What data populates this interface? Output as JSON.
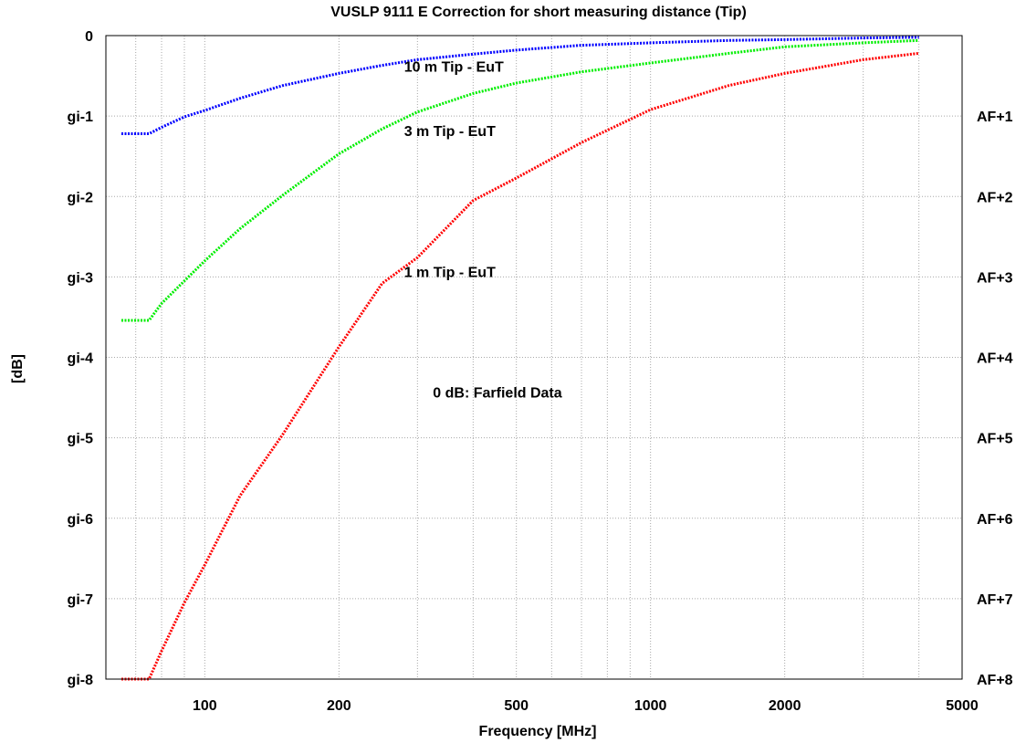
{
  "chart_data": {
    "type": "line",
    "title": "VUSLP 9111 E Correction for short measuring distance (Tip)",
    "xlabel": "Frequency [MHz]",
    "ylabel": "[dB]",
    "x_scale": "log",
    "xlim": [
      60,
      5000
    ],
    "ylim": [
      -8,
      0
    ],
    "grid": true,
    "x_ticks": [
      {
        "value": 100,
        "label": "100"
      },
      {
        "value": 200,
        "label": "200"
      },
      {
        "value": 500,
        "label": "500"
      },
      {
        "value": 1000,
        "label": "1000"
      },
      {
        "value": 2000,
        "label": "2000"
      },
      {
        "value": 5000,
        "label": "5000"
      }
    ],
    "y_ticks_left": [
      {
        "value": 0,
        "label": "0"
      },
      {
        "value": -1,
        "label": "gi-1"
      },
      {
        "value": -2,
        "label": "gi-2"
      },
      {
        "value": -3,
        "label": "gi-3"
      },
      {
        "value": -4,
        "label": "gi-4"
      },
      {
        "value": -5,
        "label": "gi-5"
      },
      {
        "value": -6,
        "label": "gi-6"
      },
      {
        "value": -7,
        "label": "gi-7"
      },
      {
        "value": -8,
        "label": "gi-8"
      }
    ],
    "y_ticks_right": [
      {
        "value": -1,
        "label": "AF+1"
      },
      {
        "value": -2,
        "label": "AF+2"
      },
      {
        "value": -3,
        "label": "AF+3"
      },
      {
        "value": -4,
        "label": "AF+4"
      },
      {
        "value": -5,
        "label": "AF+5"
      },
      {
        "value": -6,
        "label": "AF+6"
      },
      {
        "value": -7,
        "label": "AF+7"
      },
      {
        "value": -8,
        "label": "AF+8"
      }
    ],
    "series": [
      {
        "name": "10 m Tip - EuT",
        "color": "#0000ff",
        "x": [
          65,
          75,
          80,
          90,
          100,
          120,
          150,
          200,
          250,
          300,
          400,
          500,
          700,
          1000,
          1500,
          2000,
          3000,
          4000
        ],
        "y": [
          -1.22,
          -1.22,
          -1.14,
          -1.01,
          -0.93,
          -0.78,
          -0.62,
          -0.47,
          -0.37,
          -0.3,
          -0.23,
          -0.18,
          -0.12,
          -0.09,
          -0.06,
          -0.05,
          -0.03,
          -0.02
        ]
      },
      {
        "name": "3 m Tip - EuT",
        "color": "#00ee00",
        "x": [
          65,
          75,
          80,
          90,
          100,
          120,
          150,
          200,
          250,
          300,
          400,
          500,
          700,
          1000,
          1500,
          2000,
          3000,
          4000
        ],
        "y": [
          -3.54,
          -3.54,
          -3.33,
          -3.05,
          -2.8,
          -2.4,
          -1.98,
          -1.47,
          -1.16,
          -0.95,
          -0.72,
          -0.59,
          -0.45,
          -0.34,
          -0.22,
          -0.14,
          -0.09,
          -0.06
        ]
      },
      {
        "name": "1 m Tip - EuT",
        "color": "#ff0000",
        "x": [
          65,
          75,
          80,
          90,
          100,
          120,
          150,
          200,
          250,
          300,
          400,
          500,
          700,
          1000,
          1500,
          2000,
          3000,
          4000
        ],
        "y": [
          -8,
          -8,
          -7.65,
          -7.05,
          -6.58,
          -5.72,
          -4.95,
          -3.87,
          -3.08,
          -2.76,
          -2.05,
          -1.77,
          -1.33,
          -0.92,
          -0.62,
          -0.47,
          -0.3,
          -0.22
        ]
      }
    ],
    "annotations": [
      {
        "text": "10 m Tip - EuT",
        "x": 280,
        "y": -0.45
      },
      {
        "text": "3 m Tip - EuT",
        "x": 280,
        "y": -1.25
      },
      {
        "text": "1 m Tip - EuT",
        "x": 280,
        "y": -3.0
      },
      {
        "text": "0 dB: Farfield Data",
        "x": 325,
        "y": -4.5
      }
    ]
  }
}
